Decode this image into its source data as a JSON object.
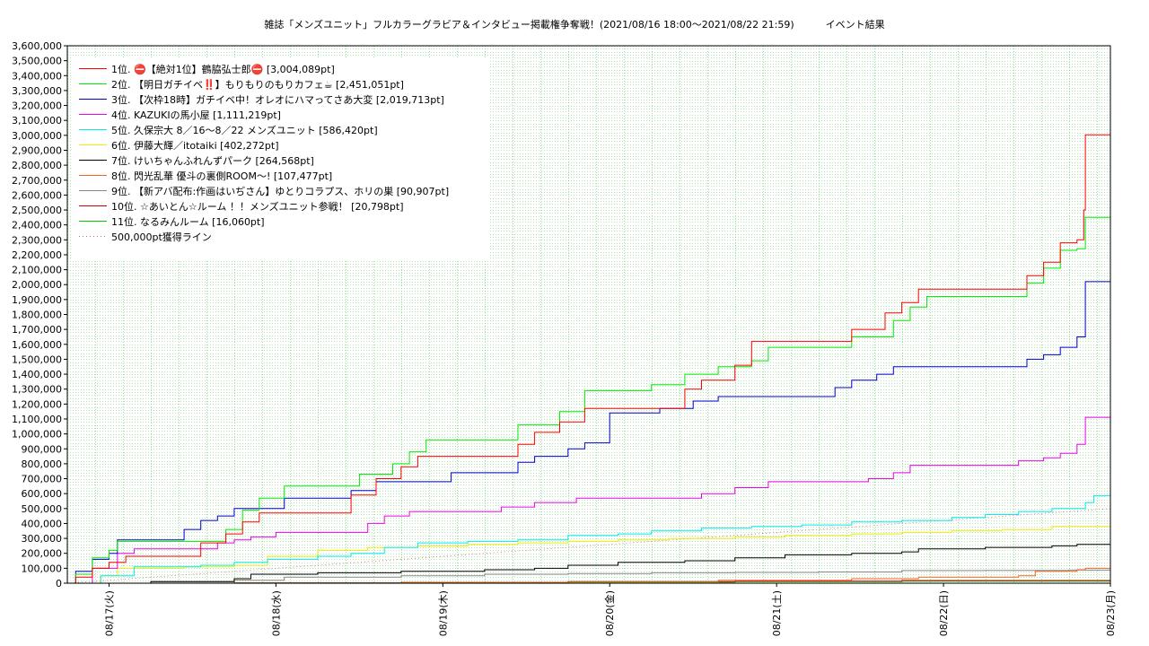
{
  "chart_data": {
    "type": "line",
    "step": true,
    "title": "雑誌「メンズユニット」フルカラーグラビア＆インタビュー掲載権争奪戦！(2021/08/16 18:00〜2021/08/22 21:59)          イベント結果",
    "xlabel": "",
    "ylabel": "",
    "x_range_days": [
      0,
      6.25
    ],
    "x_start": "2021/08/16 18:00",
    "ylim": [
      0,
      3600000
    ],
    "grid": true,
    "legend_position": "top-left",
    "categories": [
      "08/17(火)",
      "08/18(水)",
      "08/19(木)",
      "08/20(金)",
      "08/21(土)",
      "08/22(日)",
      "08/23(月)"
    ],
    "y_ticks": [
      "0",
      "100,000",
      "200,000",
      "300,000",
      "400,000",
      "500,000",
      "600,000",
      "700,000",
      "800,000",
      "900,000",
      "1,000,000",
      "1,100,000",
      "1,200,000",
      "1,300,000",
      "1,400,000",
      "1,500,000",
      "1,600,000",
      "1,700,000",
      "1,800,000",
      "1,900,000",
      "2,000,000",
      "2,100,000",
      "2,200,000",
      "2,300,000",
      "2,400,000",
      "2,500,000",
      "2,600,000",
      "2,700,000",
      "2,800,000",
      "2,900,000",
      "3,000,000",
      "3,100,000",
      "3,200,000",
      "3,300,000",
      "3,400,000",
      "3,500,000",
      "3,600,000"
    ],
    "threshold": {
      "name": "500,000pt獲得ライン",
      "color": "#cc6666",
      "points": [
        [
          0,
          0
        ],
        [
          6.25,
          500000
        ]
      ]
    },
    "series": [
      {
        "name": "1位. ⛔【絶対1位】鶴脇弘士郎⛔ [3,004,089pt]",
        "color": "#ff0000",
        "points": [
          [
            0,
            0
          ],
          [
            0.05,
            40000
          ],
          [
            0.15,
            100000
          ],
          [
            0.25,
            140000
          ],
          [
            0.35,
            180000
          ],
          [
            0.7,
            180000
          ],
          [
            0.8,
            270000
          ],
          [
            0.95,
            330000
          ],
          [
            1.05,
            410000
          ],
          [
            1.15,
            470000
          ],
          [
            1.6,
            470000
          ],
          [
            1.7,
            590000
          ],
          [
            1.85,
            700000
          ],
          [
            2,
            780000
          ],
          [
            2.1,
            850000
          ],
          [
            2.6,
            850000
          ],
          [
            2.7,
            930000
          ],
          [
            2.8,
            1010000
          ],
          [
            2.95,
            1080000
          ],
          [
            3.1,
            1170000
          ],
          [
            3.6,
            1170000
          ],
          [
            3.7,
            1300000
          ],
          [
            3.8,
            1360000
          ],
          [
            4,
            1460000
          ],
          [
            4.1,
            1620000
          ],
          [
            4.6,
            1620000
          ],
          [
            4.7,
            1700000
          ],
          [
            4.9,
            1810000
          ],
          [
            5,
            1880000
          ],
          [
            5.1,
            1970000
          ],
          [
            5.7,
            1970000
          ],
          [
            5.75,
            2060000
          ],
          [
            5.85,
            2150000
          ],
          [
            5.95,
            2280000
          ],
          [
            6.05,
            2300000
          ],
          [
            6.09,
            2500000
          ],
          [
            6.1,
            3004089
          ],
          [
            6.25,
            3004089
          ]
        ]
      },
      {
        "name": "2位. 【明日ガチイベ‼️】もりもりのもりカフェ☕ [2,451,051pt]",
        "color": "#00ee00",
        "points": [
          [
            0,
            0
          ],
          [
            0.05,
            60000
          ],
          [
            0.15,
            170000
          ],
          [
            0.25,
            220000
          ],
          [
            0.3,
            280000
          ],
          [
            0.7,
            280000
          ],
          [
            0.8,
            280000
          ],
          [
            0.95,
            360000
          ],
          [
            1.05,
            490000
          ],
          [
            1.15,
            570000
          ],
          [
            1.3,
            650000
          ],
          [
            1.6,
            650000
          ],
          [
            1.75,
            730000
          ],
          [
            1.95,
            800000
          ],
          [
            2.05,
            880000
          ],
          [
            2.15,
            960000
          ],
          [
            2.6,
            960000
          ],
          [
            2.7,
            1060000
          ],
          [
            2.95,
            1150000
          ],
          [
            3.1,
            1290000
          ],
          [
            3.4,
            1290000
          ],
          [
            3.5,
            1330000
          ],
          [
            3.7,
            1400000
          ],
          [
            3.9,
            1450000
          ],
          [
            4.1,
            1490000
          ],
          [
            4.2,
            1580000
          ],
          [
            4.6,
            1580000
          ],
          [
            4.7,
            1650000
          ],
          [
            4.95,
            1760000
          ],
          [
            5.05,
            1850000
          ],
          [
            5.15,
            1920000
          ],
          [
            5.7,
            1920000
          ],
          [
            5.75,
            2010000
          ],
          [
            5.85,
            2110000
          ],
          [
            5.95,
            2230000
          ],
          [
            6.05,
            2240000
          ],
          [
            6.1,
            2450000
          ],
          [
            6.25,
            2451051
          ]
        ]
      },
      {
        "name": "3位. 【次枠18時】ガチイベ中！オレオにハマってさあ大変 [2,019,713pt]",
        "color": "#0000cc",
        "points": [
          [
            0,
            0
          ],
          [
            0.05,
            80000
          ],
          [
            0.15,
            160000
          ],
          [
            0.25,
            200000
          ],
          [
            0.3,
            290000
          ],
          [
            0.6,
            290000
          ],
          [
            0.7,
            360000
          ],
          [
            0.8,
            420000
          ],
          [
            0.9,
            450000
          ],
          [
            1.0,
            500000
          ],
          [
            1.2,
            500000
          ],
          [
            1.3,
            570000
          ],
          [
            1.6,
            570000
          ],
          [
            1.7,
            620000
          ],
          [
            1.85,
            680000
          ],
          [
            2.2,
            680000
          ],
          [
            2.3,
            740000
          ],
          [
            2.6,
            740000
          ],
          [
            2.7,
            810000
          ],
          [
            2.8,
            850000
          ],
          [
            3,
            900000
          ],
          [
            3.1,
            940000
          ],
          [
            3.25,
            1140000
          ],
          [
            3.4,
            1140000
          ],
          [
            3.55,
            1170000
          ],
          [
            3.75,
            1220000
          ],
          [
            3.9,
            1250000
          ],
          [
            4.5,
            1250000
          ],
          [
            4.6,
            1310000
          ],
          [
            4.7,
            1360000
          ],
          [
            4.85,
            1400000
          ],
          [
            4.95,
            1450000
          ],
          [
            5.7,
            1450000
          ],
          [
            5.75,
            1500000
          ],
          [
            5.85,
            1530000
          ],
          [
            5.95,
            1580000
          ],
          [
            6.05,
            1650000
          ],
          [
            6.1,
            2019713
          ],
          [
            6.25,
            2019713
          ]
        ]
      },
      {
        "name": "4位. KAZUKIの馬小屋 [1,111,219pt]",
        "color": "#ee00ee",
        "points": [
          [
            0,
            0
          ],
          [
            0.15,
            100000
          ],
          [
            0.3,
            200000
          ],
          [
            0.4,
            230000
          ],
          [
            0.8,
            230000
          ],
          [
            0.9,
            270000
          ],
          [
            1,
            290000
          ],
          [
            1.1,
            310000
          ],
          [
            1.25,
            340000
          ],
          [
            1.7,
            340000
          ],
          [
            1.8,
            400000
          ],
          [
            1.9,
            450000
          ],
          [
            2.05,
            480000
          ],
          [
            2.5,
            480000
          ],
          [
            2.6,
            510000
          ],
          [
            2.8,
            540000
          ],
          [
            3.05,
            570000
          ],
          [
            3.6,
            570000
          ],
          [
            3.8,
            600000
          ],
          [
            4,
            640000
          ],
          [
            4.2,
            680000
          ],
          [
            4.6,
            680000
          ],
          [
            4.8,
            700000
          ],
          [
            4.95,
            740000
          ],
          [
            5.05,
            790000
          ],
          [
            5.5,
            790000
          ],
          [
            5.7,
            820000
          ],
          [
            5.85,
            840000
          ],
          [
            5.95,
            870000
          ],
          [
            6.05,
            930000
          ],
          [
            6.1,
            1111219
          ],
          [
            6.25,
            1111219
          ]
        ]
      },
      {
        "name": "5位. 久保宗大 8／16〜8／22 メンズユニット [586,420pt]",
        "color": "#00eeee",
        "points": [
          [
            0,
            0
          ],
          [
            0.2,
            50000
          ],
          [
            0.4,
            110000
          ],
          [
            0.8,
            120000
          ],
          [
            1,
            140000
          ],
          [
            1.2,
            160000
          ],
          [
            1.5,
            180000
          ],
          [
            1.7,
            200000
          ],
          [
            1.9,
            240000
          ],
          [
            2.1,
            270000
          ],
          [
            2.4,
            280000
          ],
          [
            2.7,
            290000
          ],
          [
            3,
            320000
          ],
          [
            3.3,
            330000
          ],
          [
            3.5,
            350000
          ],
          [
            3.8,
            370000
          ],
          [
            4.1,
            380000
          ],
          [
            4.4,
            390000
          ],
          [
            4.7,
            410000
          ],
          [
            5,
            420000
          ],
          [
            5.3,
            440000
          ],
          [
            5.5,
            460000
          ],
          [
            5.7,
            480000
          ],
          [
            5.9,
            500000
          ],
          [
            6.1,
            540000
          ],
          [
            6.15,
            586420
          ],
          [
            6.25,
            586420
          ]
        ]
      },
      {
        "name": "6位. 伊藤大輝／itotaiki [402,272pt]",
        "color": "#eeee00",
        "points": [
          [
            0,
            0
          ],
          [
            0.2,
            50000
          ],
          [
            0.3,
            100000
          ],
          [
            0.7,
            110000
          ],
          [
            1,
            120000
          ],
          [
            1.2,
            180000
          ],
          [
            1.5,
            220000
          ],
          [
            1.8,
            240000
          ],
          [
            2.1,
            250000
          ],
          [
            2.4,
            260000
          ],
          [
            2.7,
            270000
          ],
          [
            3,
            280000
          ],
          [
            3.3,
            290000
          ],
          [
            3.6,
            300000
          ],
          [
            4,
            310000
          ],
          [
            4.3,
            320000
          ],
          [
            4.7,
            330000
          ],
          [
            5,
            340000
          ],
          [
            5.3,
            350000
          ],
          [
            5.6,
            360000
          ],
          [
            5.9,
            380000
          ],
          [
            6.25,
            402272
          ]
        ]
      },
      {
        "name": "7位. けいちゃんふれんずパーク [264,568pt]",
        "color": "#000000",
        "points": [
          [
            0,
            0
          ],
          [
            0.5,
            10000
          ],
          [
            1,
            30000
          ],
          [
            1.1,
            60000
          ],
          [
            1.5,
            70000
          ],
          [
            2,
            80000
          ],
          [
            2.5,
            90000
          ],
          [
            2.8,
            100000
          ],
          [
            3,
            120000
          ],
          [
            3.3,
            140000
          ],
          [
            3.7,
            150000
          ],
          [
            4,
            170000
          ],
          [
            4.3,
            190000
          ],
          [
            4.7,
            200000
          ],
          [
            5,
            210000
          ],
          [
            5.1,
            230000
          ],
          [
            5.5,
            240000
          ],
          [
            5.9,
            250000
          ],
          [
            6.05,
            260000
          ],
          [
            6.25,
            264568
          ]
        ]
      },
      {
        "name": "8位. 閃光乱華 優斗の裏側ROOM〜! [107,477pt]",
        "color": "#ee6622",
        "points": [
          [
            0,
            0
          ],
          [
            2,
            5000
          ],
          [
            3,
            10000
          ],
          [
            3.9,
            20000
          ],
          [
            4.7,
            30000
          ],
          [
            5.1,
            40000
          ],
          [
            5.7,
            50000
          ],
          [
            5.8,
            80000
          ],
          [
            6.05,
            90000
          ],
          [
            6.1,
            100000
          ],
          [
            6.25,
            107477
          ]
        ]
      },
      {
        "name": "9位. 【新アバ配布:作画はいぢさん】ゆとりコラプス、ホリの巣 [90,907pt]",
        "color": "#888888",
        "points": [
          [
            0,
            0
          ],
          [
            0.5,
            10000
          ],
          [
            1,
            20000
          ],
          [
            1.3,
            40000
          ],
          [
            2,
            50000
          ],
          [
            2.5,
            60000
          ],
          [
            3,
            65000
          ],
          [
            3.5,
            70000
          ],
          [
            4,
            72000
          ],
          [
            4.5,
            75000
          ],
          [
            5,
            85000
          ],
          [
            5.5,
            86000
          ],
          [
            6,
            88000
          ],
          [
            6.25,
            90907
          ]
        ]
      },
      {
        "name": "10位. ☆あいとん☆ルーム ！！メンズユニット参戦！ [20,798pt]",
        "color": "#cc0000",
        "points": [
          [
            0,
            0
          ],
          [
            1,
            2000
          ],
          [
            2,
            5000
          ],
          [
            3,
            10000
          ],
          [
            4,
            14000
          ],
          [
            5,
            18000
          ],
          [
            6.25,
            20798
          ]
        ]
      },
      {
        "name": "11位. なるみんルーム [16,060pt]",
        "color": "#00cc00",
        "points": [
          [
            0,
            0
          ],
          [
            1,
            2000
          ],
          [
            2,
            5000
          ],
          [
            3,
            8000
          ],
          [
            4,
            11000
          ],
          [
            5,
            14000
          ],
          [
            6.25,
            16060
          ]
        ]
      }
    ]
  }
}
